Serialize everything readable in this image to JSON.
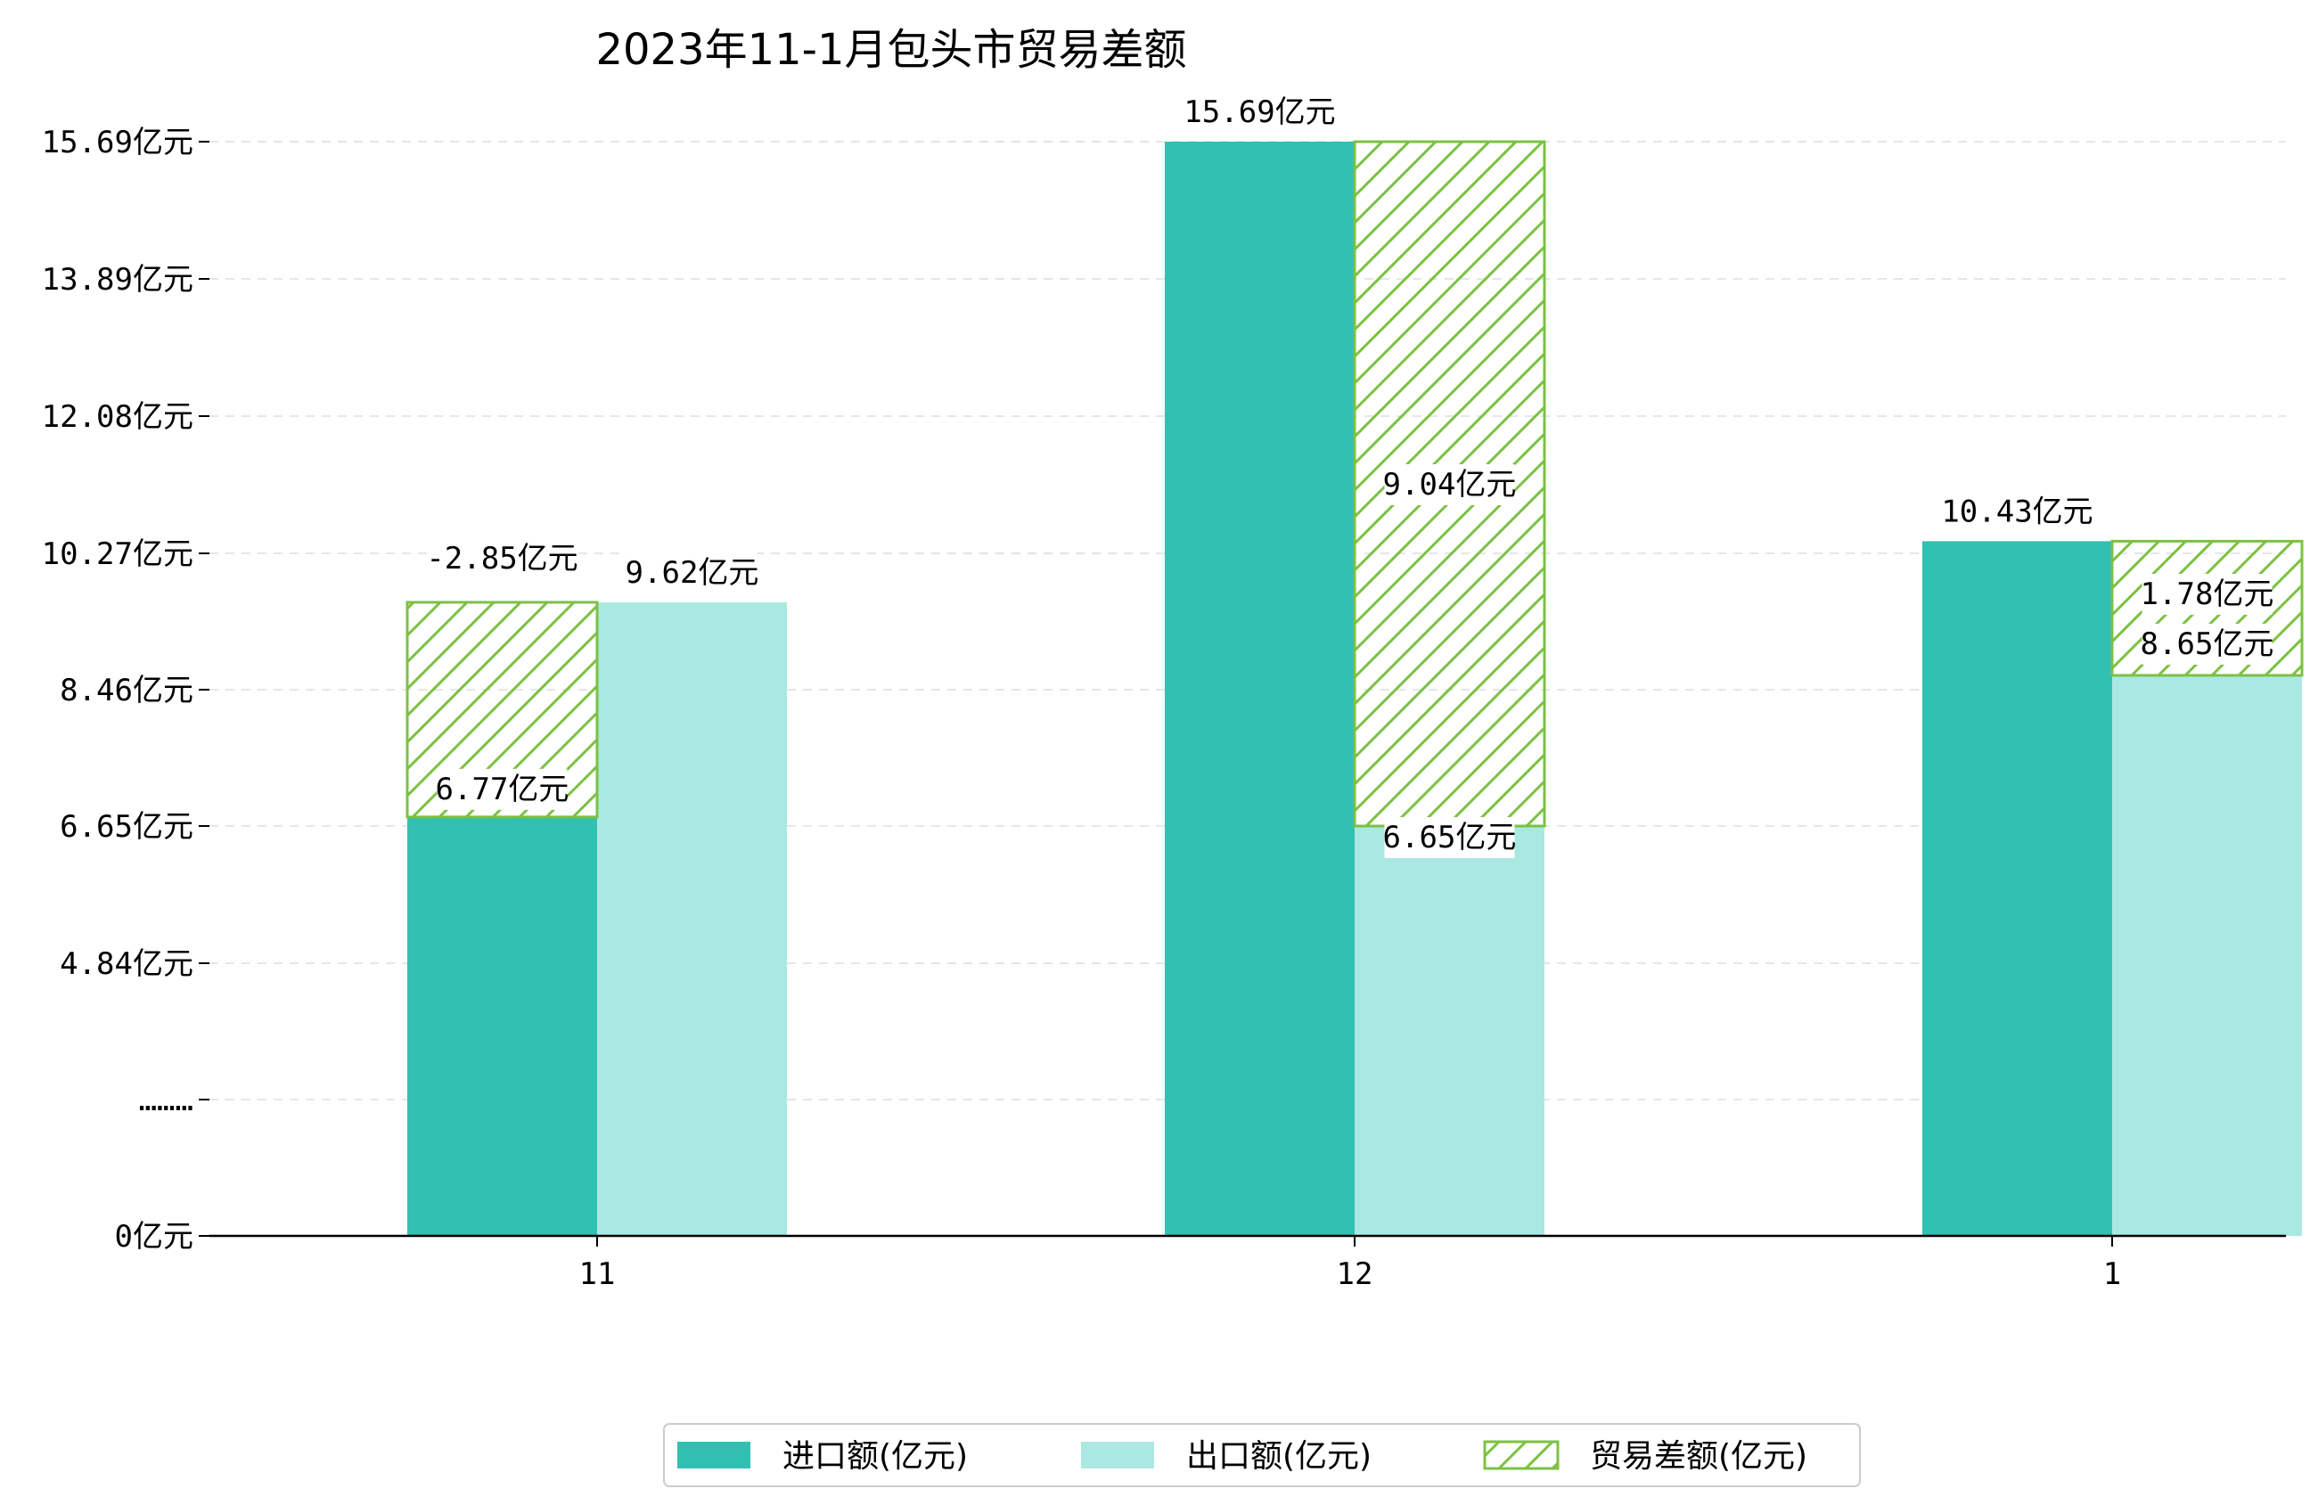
{
  "chart_data": {
    "type": "bar",
    "title": "2023年11-1月包头市贸易差额",
    "categories": [
      "11",
      "12",
      "1"
    ],
    "y_tick_labels": [
      "0亿元",
      "………",
      "4.84亿元",
      "6.65亿元",
      "8.46亿元",
      "10.27亿元",
      "12.08亿元",
      "13.89亿元",
      "15.69亿元"
    ],
    "ylim": [
      0,
      15.69
    ],
    "axis_break": true,
    "grid": true,
    "legend_position": "bottom-center",
    "series": [
      {
        "name": "进口额(亿元)",
        "values": [
          6.77,
          15.69,
          10.43
        ],
        "labels": [
          "6.77亿元",
          "15.69亿元",
          "10.43亿元"
        ],
        "color": "#31c0b1"
      },
      {
        "name": "出口额(亿元)",
        "values": [
          9.62,
          6.65,
          8.65
        ],
        "labels": [
          "9.62亿元",
          "6.65亿元",
          "8.65亿元"
        ],
        "color": "#aae8e2"
      },
      {
        "name": "贸易差额(亿元)",
        "values": [
          -2.85,
          9.04,
          1.78
        ],
        "labels": [
          "-2.85亿元",
          "9.04亿元",
          "1.78亿元"
        ],
        "color": "#7cc144",
        "pattern": "hatch"
      }
    ]
  }
}
